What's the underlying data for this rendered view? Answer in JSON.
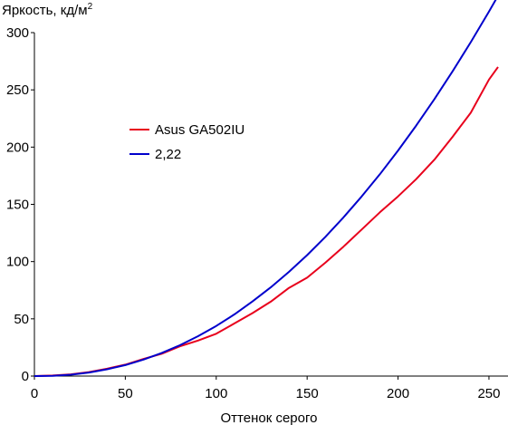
{
  "chart_data": {
    "type": "line",
    "title": "",
    "xlabel": "Оттенок серого",
    "ylabel": "Яркость, кд/м",
    "ylabel_superscript": "2",
    "xlim": [
      0,
      255
    ],
    "ylim": [
      0,
      300
    ],
    "x_ticks": [
      0,
      50,
      100,
      150,
      200,
      250
    ],
    "y_ticks": [
      0,
      50,
      100,
      150,
      200,
      250,
      300
    ],
    "grid": false,
    "legend_position": "center-left",
    "series": [
      {
        "name": "Asus GA502IU",
        "color": "#e8001c",
        "x": [
          0,
          10,
          20,
          30,
          40,
          50,
          60,
          70,
          80,
          90,
          100,
          110,
          120,
          130,
          140,
          150,
          160,
          170,
          180,
          190,
          200,
          210,
          220,
          230,
          240,
          250,
          255
        ],
        "y": [
          0,
          0.5,
          1.5,
          3.5,
          6.5,
          10,
          15,
          19.5,
          26,
          31,
          37,
          46,
          55,
          65,
          77,
          86,
          99,
          113,
          128,
          143,
          157,
          172,
          189,
          209,
          230,
          259,
          270
        ]
      },
      {
        "name": "2,22",
        "color": "#0000cc",
        "x": [
          0,
          10,
          20,
          30,
          40,
          50,
          60,
          70,
          80,
          90,
          100,
          110,
          120,
          130,
          140,
          150,
          160,
          170,
          180,
          190,
          200,
          210,
          220,
          230,
          240,
          250,
          255
        ],
        "y": [
          0,
          0.2,
          1.2,
          3.1,
          5.9,
          9.6,
          14.4,
          20.1,
          26.9,
          34.8,
          43.8,
          53.9,
          65.2,
          77.5,
          91,
          105.7,
          121.6,
          138.6,
          156.9,
          176.3,
          197,
          218.8,
          241.9,
          266.2,
          291.7,
          318.4,
          332.2
        ]
      }
    ]
  }
}
